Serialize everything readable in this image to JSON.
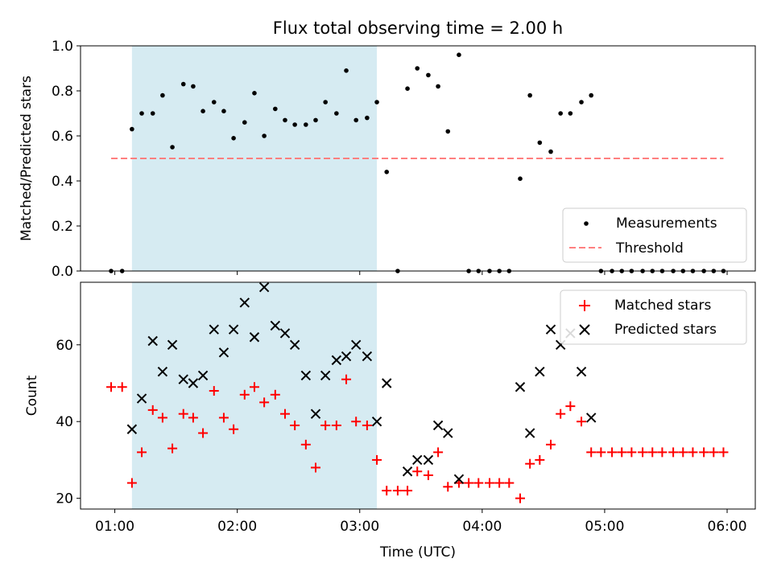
{
  "chart_data": [
    {
      "type": "scatter",
      "title": "Flux total observing time = 2.00 h",
      "xlabel": "",
      "ylabel": "Matched/Predicted stars",
      "xlim_hours": [
        0.72,
        6.23
      ],
      "ylim": [
        0,
        1.0
      ],
      "yticks": [
        0.0,
        0.2,
        0.4,
        0.6,
        0.8,
        1.0
      ],
      "ytick_labels": [
        "0.0",
        "0.2",
        "0.4",
        "0.6",
        "0.8",
        "1.0"
      ],
      "shaded_span_hours": [
        1.14,
        3.14
      ],
      "threshold": {
        "name": "Threshold",
        "y": 0.5,
        "x_range_hours": [
          0.97,
          5.97
        ],
        "color": "#ff7f7f",
        "style": "dashed"
      },
      "series": [
        {
          "name": "Measurements",
          "marker": "dot",
          "color": "#000000",
          "x": [
            0.97,
            1.06,
            1.14,
            1.22,
            1.31,
            1.39,
            1.47,
            1.56,
            1.64,
            1.72,
            1.81,
            1.89,
            1.97,
            2.06,
            2.14,
            2.22,
            2.31,
            2.39,
            2.47,
            2.56,
            2.64,
            2.72,
            2.81,
            2.89,
            2.97,
            3.06,
            3.14,
            3.22,
            3.31,
            3.39,
            3.47,
            3.56,
            3.64,
            3.72,
            3.81,
            3.89,
            3.97,
            4.06,
            4.14,
            4.22,
            4.31,
            4.39,
            4.47,
            4.56,
            4.64,
            4.72,
            4.81,
            4.89,
            4.97,
            5.06,
            5.14,
            5.22,
            5.31,
            5.39,
            5.47,
            5.56,
            5.64,
            5.72,
            5.81,
            5.89,
            5.97
          ],
          "y": [
            0,
            0,
            0.63,
            0.7,
            0.7,
            0.78,
            0.55,
            0.83,
            0.82,
            0.71,
            0.75,
            0.71,
            0.59,
            0.66,
            0.79,
            0.6,
            0.72,
            0.67,
            0.65,
            0.65,
            0.67,
            0.75,
            0.7,
            0.89,
            0.67,
            0.68,
            0.75,
            0.44,
            0,
            0.81,
            0.9,
            0.87,
            0.82,
            0.62,
            0.96,
            0,
            0,
            0,
            0,
            0,
            0.41,
            0.78,
            0.57,
            0.53,
            0.7,
            0.7,
            0.75,
            0.78,
            0,
            0,
            0,
            0,
            0,
            0,
            0,
            0,
            0,
            0,
            0,
            0,
            0
          ]
        }
      ],
      "legend": {
        "placement": "lower-right",
        "entries": [
          "Measurements",
          "Threshold"
        ]
      }
    },
    {
      "type": "scatter",
      "title": "",
      "xlabel": "Time (UTC)",
      "ylabel": "Count",
      "xlim_hours": [
        0.72,
        6.23
      ],
      "xticks_hours": [
        1,
        2,
        3,
        4,
        5,
        6
      ],
      "xtick_labels": [
        "01:00",
        "02:00",
        "03:00",
        "04:00",
        "05:00",
        "06:00"
      ],
      "ylim": [
        17.2,
        76.3
      ],
      "yticks": [
        20,
        40,
        60
      ],
      "ytick_labels": [
        "20",
        "40",
        "60"
      ],
      "shaded_span_hours": [
        1.14,
        3.14
      ],
      "series": [
        {
          "name": "Matched stars",
          "marker": "plus",
          "color": "#ff0000",
          "x": [
            0.97,
            1.06,
            1.14,
            1.22,
            1.31,
            1.39,
            1.47,
            1.56,
            1.64,
            1.72,
            1.81,
            1.89,
            1.97,
            2.06,
            2.14,
            2.22,
            2.31,
            2.39,
            2.47,
            2.56,
            2.64,
            2.72,
            2.81,
            2.89,
            2.97,
            3.06,
            3.14,
            3.22,
            3.31,
            3.39,
            3.47,
            3.56,
            3.64,
            3.72,
            3.81,
            3.89,
            3.97,
            4.06,
            4.14,
            4.22,
            4.31,
            4.39,
            4.47,
            4.56,
            4.64,
            4.72,
            4.81,
            4.89,
            4.97,
            5.06,
            5.14,
            5.22,
            5.31,
            5.39,
            5.47,
            5.56,
            5.64,
            5.72,
            5.81,
            5.89,
            5.97
          ],
          "y": [
            49,
            49,
            24,
            32,
            43,
            41,
            33,
            42,
            41,
            37,
            48,
            41,
            38,
            47,
            49,
            45,
            47,
            42,
            39,
            34,
            28,
            39,
            39,
            51,
            40,
            39,
            30,
            22,
            22,
            22,
            27,
            26,
            32,
            23,
            24,
            24,
            24,
            24,
            24,
            24,
            20,
            29,
            30,
            34,
            42,
            44,
            40,
            32,
            32,
            32,
            32,
            32,
            32,
            32,
            32,
            32,
            32,
            32,
            32,
            32,
            32
          ]
        },
        {
          "name": "Predicted stars",
          "marker": "x",
          "color": "#000000",
          "x": [
            1.14,
            1.22,
            1.31,
            1.39,
            1.47,
            1.56,
            1.64,
            1.72,
            1.81,
            1.89,
            1.97,
            2.06,
            2.14,
            2.22,
            2.31,
            2.39,
            2.47,
            2.56,
            2.64,
            2.72,
            2.81,
            2.89,
            2.97,
            3.06,
            3.14,
            3.22,
            3.39,
            3.47,
            3.56,
            3.64,
            3.72,
            3.81,
            4.31,
            4.39,
            4.47,
            4.56,
            4.64,
            4.72,
            4.81,
            4.89
          ],
          "y": [
            38,
            46,
            61,
            53,
            60,
            51,
            50,
            52,
            64,
            58,
            64,
            71,
            62,
            75,
            65,
            63,
            60,
            52,
            42,
            52,
            56,
            57,
            60,
            57,
            40,
            50,
            27,
            30,
            30,
            39,
            37,
            25,
            49,
            37,
            53,
            64,
            60,
            63,
            53,
            41
          ]
        }
      ],
      "legend": {
        "placement": "upper-right",
        "entries": [
          "Matched stars",
          "Predicted stars"
        ]
      }
    }
  ]
}
